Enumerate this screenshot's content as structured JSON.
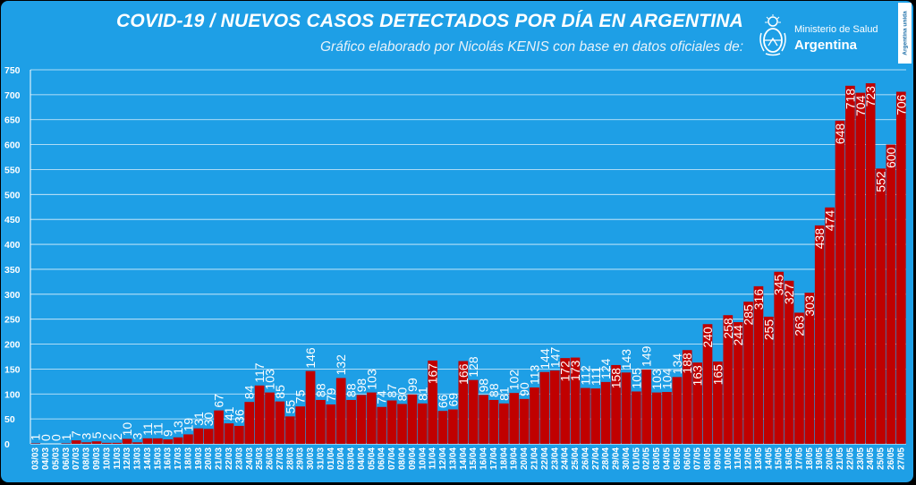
{
  "chart_data": {
    "type": "bar",
    "title": "COVID-19  /  NUEVOS CASOS DETECTADOS POR DÍA EN ARGENTINA",
    "subtitle": "Gráfico elaborado por Nicolás KENIS con base en datos oficiales de:",
    "xlabel": "",
    "ylabel": "",
    "ylim": [
      0,
      750
    ],
    "yticks": [
      0,
      50,
      100,
      150,
      200,
      250,
      300,
      350,
      400,
      450,
      500,
      550,
      600,
      650,
      700,
      750
    ],
    "grid": true,
    "legend": "none",
    "bar_color": "#C00000",
    "background_color": "#1E9FE6",
    "categories": [
      "03/03",
      "04/03",
      "05/03",
      "06/03",
      "07/03",
      "08/03",
      "09/03",
      "10/03",
      "11/03",
      "12/03",
      "13/03",
      "14/03",
      "15/03",
      "16/03",
      "17/03",
      "18/03",
      "19/03",
      "20/03",
      "21/03",
      "22/03",
      "23/03",
      "24/03",
      "25/03",
      "26/03",
      "27/03",
      "28/03",
      "29/03",
      "30/03",
      "31/03",
      "01/04",
      "02/04",
      "03/04",
      "04/04",
      "05/04",
      "06/04",
      "07/04",
      "08/04",
      "09/04",
      "10/04",
      "11/04",
      "12/04",
      "13/04",
      "14/04",
      "15/04",
      "16/04",
      "17/04",
      "18/04",
      "19/04",
      "20/04",
      "21/04",
      "22/04",
      "23/04",
      "24/04",
      "25/04",
      "26/04",
      "27/04",
      "28/04",
      "29/04",
      "30/04",
      "01/05",
      "02/05",
      "03/05",
      "04/05",
      "05/05",
      "06/05",
      "07/05",
      "08/05",
      "09/05",
      "10/05",
      "11/05",
      "12/05",
      "13/05",
      "14/05",
      "15/05",
      "16/05",
      "17/05",
      "18/05",
      "19/05",
      "20/05",
      "21/05",
      "22/05",
      "23/05",
      "24/05",
      "25/05",
      "26/05",
      "27/05"
    ],
    "values": [
      1,
      0,
      0,
      1,
      7,
      3,
      5,
      2,
      2,
      10,
      3,
      11,
      11,
      9,
      13,
      19,
      31,
      30,
      67,
      41,
      36,
      84,
      117,
      103,
      85,
      55,
      75,
      146,
      88,
      79,
      132,
      88,
      98,
      103,
      74,
      87,
      80,
      99,
      81,
      167,
      66,
      69,
      166,
      128,
      98,
      88,
      81,
      102,
      90,
      113,
      144,
      147,
      172,
      173,
      112,
      111,
      124,
      158,
      143,
      105,
      149,
      103,
      104,
      134,
      188,
      163,
      240,
      165,
      258,
      244,
      285,
      316,
      255,
      345,
      327,
      263,
      303,
      438,
      474,
      648,
      718,
      704,
      723,
      552,
      600,
      706
    ],
    "data_labels": [
      "1",
      "0",
      "0",
      "1",
      "7",
      "3",
      "5",
      "2",
      "2",
      "10",
      "3",
      "11",
      "11",
      "9",
      "13",
      "19",
      "31",
      "30",
      "67",
      "41",
      "36",
      "84",
      "117",
      "103",
      "85",
      "55",
      "75",
      "146",
      "88",
      "79",
      "132",
      "88",
      "98",
      "103",
      "74",
      "87",
      "80",
      "99",
      "81",
      "167",
      "66",
      "69",
      "166",
      "128",
      "98",
      "88",
      "81",
      "102",
      "90",
      "113",
      "144",
      "147",
      "172",
      "173",
      "112",
      "111",
      "124",
      "158",
      "143",
      "105",
      "149",
      "103",
      "104",
      "134",
      "188",
      "163",
      "240",
      "165",
      "258",
      "244",
      "285",
      "316",
      "255",
      "345",
      "327",
      "263",
      "303",
      "438",
      "474",
      "648",
      "718",
      "704",
      "723",
      "552",
      "600",
      "706"
    ]
  },
  "logo": {
    "line1": "Ministerio de Salud",
    "line2": "Argentina",
    "badge": "Argentina unida"
  },
  "colors": {
    "panel": "#1E9FE6",
    "bars": "#C00000",
    "grid": "#ffffff"
  }
}
